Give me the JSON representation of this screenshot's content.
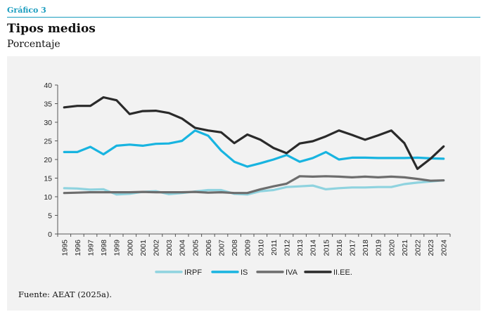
{
  "header": {
    "label": "Gráfico 3",
    "title": "Tipos medios",
    "subtitle": "Porcentaje"
  },
  "source": "Fuente: AEAT (2025a).",
  "chart_data": {
    "type": "line",
    "x": [
      "1995",
      "1996",
      "1997",
      "1998",
      "1999",
      "2000",
      "2001",
      "2002",
      "2003",
      "2004",
      "2005",
      "2006",
      "2007",
      "2008",
      "2009",
      "2010",
      "2011",
      "2012",
      "2013",
      "2014",
      "2015",
      "2016",
      "2017",
      "2018",
      "2019",
      "2020",
      "2021",
      "2022",
      "2023",
      "2024"
    ],
    "ylim": [
      0,
      40
    ],
    "yticks": [
      0,
      5,
      10,
      15,
      20,
      25,
      30,
      35,
      40
    ],
    "grid": false,
    "legend_position": "bottom",
    "series": [
      {
        "name": "IRPF",
        "color": "#8fd3df",
        "values": [
          12.3,
          12.2,
          11.9,
          12.0,
          10.6,
          10.8,
          11.3,
          11.5,
          10.7,
          11.0,
          11.4,
          11.8,
          11.8,
          10.8,
          10.6,
          11.5,
          11.8,
          12.6,
          12.8,
          13.0,
          12.0,
          12.3,
          12.5,
          12.5,
          12.6,
          12.6,
          13.4,
          13.8,
          14.1,
          14.4
        ]
      },
      {
        "name": "IS",
        "color": "#18b4e0",
        "values": [
          22.0,
          22.0,
          23.4,
          21.4,
          23.7,
          24.0,
          23.7,
          24.2,
          24.3,
          25.0,
          27.8,
          26.4,
          22.4,
          19.4,
          18.1,
          19.0,
          20.0,
          21.2,
          19.4,
          20.4,
          22.0,
          20.0,
          20.5,
          20.5,
          20.4,
          20.4,
          20.4,
          20.5,
          20.3,
          20.2
        ]
      },
      {
        "name": "IVA",
        "color": "#6d6d6d",
        "values": [
          11.0,
          11.1,
          11.2,
          11.2,
          11.2,
          11.2,
          11.3,
          11.2,
          11.2,
          11.2,
          11.3,
          11.1,
          11.2,
          11.0,
          11.0,
          12.0,
          12.8,
          13.5,
          15.5,
          15.4,
          15.5,
          15.4,
          15.2,
          15.4,
          15.2,
          15.4,
          15.2,
          14.8,
          14.3,
          14.4
        ]
      },
      {
        "name": "II.EE.",
        "color": "#2a2a2a",
        "values": [
          34.0,
          34.4,
          34.4,
          36.7,
          35.9,
          32.2,
          33.0,
          33.1,
          32.5,
          31.0,
          28.5,
          27.8,
          27.3,
          24.4,
          26.7,
          25.3,
          23.1,
          21.7,
          24.3,
          24.9,
          26.2,
          27.8,
          26.6,
          25.3,
          26.5,
          27.8,
          24.4,
          17.5,
          20.2,
          23.5
        ]
      }
    ]
  }
}
